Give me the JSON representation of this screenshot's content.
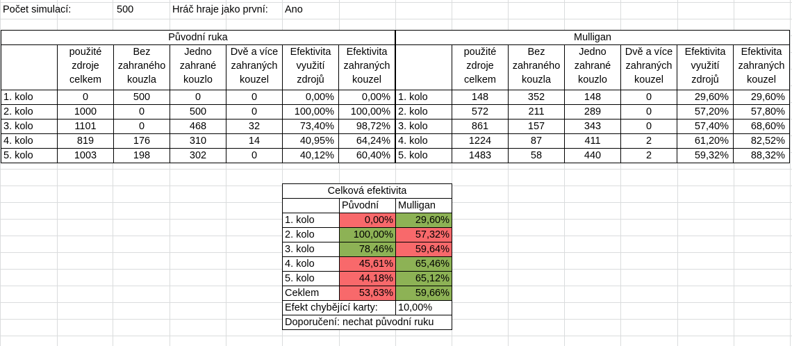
{
  "top": {
    "sim_label": "Počet simulací:",
    "sim_value": "500",
    "first_label": "Hráč hraje jako první:",
    "first_value": "Ano"
  },
  "original": {
    "title": "Původní ruka",
    "headers": [
      [
        "použité",
        "zdroje",
        "celkem"
      ],
      [
        "Bez",
        "zahraného",
        "kouzla"
      ],
      [
        "Jedno",
        "zahrané",
        "kouzlo"
      ],
      [
        "Dvě a více",
        "zahraných",
        "kouzel"
      ],
      [
        "Efektivita",
        "využití",
        "zdrojů"
      ],
      [
        "Efektivita",
        "zahraných",
        "kouzel"
      ]
    ],
    "rows": [
      [
        "1. kolo",
        "0",
        "500",
        "0",
        "0",
        "0,00%",
        "0,00%"
      ],
      [
        "2. kolo",
        "1000",
        "0",
        "500",
        "0",
        "100,00%",
        "100,00%"
      ],
      [
        "3. kolo",
        "1101",
        "0",
        "468",
        "32",
        "73,40%",
        "98,72%"
      ],
      [
        "4. kolo",
        "819",
        "176",
        "310",
        "14",
        "40,95%",
        "64,24%"
      ],
      [
        "5. kolo",
        "1003",
        "198",
        "302",
        "0",
        "40,12%",
        "60,40%"
      ]
    ]
  },
  "mulligan": {
    "title": "Mulligan",
    "headers": [
      [
        "použité",
        "zdroje",
        "celkem"
      ],
      [
        "Bez",
        "zahraného",
        "kouzla"
      ],
      [
        "Jedno",
        "zahrané",
        "kouzlo"
      ],
      [
        "Dvě a více",
        "zahraných",
        "kouzel"
      ],
      [
        "Efektivita",
        "využití",
        "zdrojů"
      ],
      [
        "Efektivita",
        "zahraných",
        "kouzel"
      ]
    ],
    "rows": [
      [
        "1. kolo",
        "148",
        "352",
        "148",
        "0",
        "29,60%",
        "29,60%"
      ],
      [
        "2. kolo",
        "572",
        "211",
        "289",
        "0",
        "57,20%",
        "57,80%"
      ],
      [
        "3. kolo",
        "861",
        "157",
        "343",
        "0",
        "57,40%",
        "68,60%"
      ],
      [
        "4. kolo",
        "1224",
        "87",
        "411",
        "2",
        "61,20%",
        "82,52%"
      ],
      [
        "5. kolo",
        "1483",
        "58",
        "440",
        "2",
        "59,32%",
        "88,32%"
      ]
    ]
  },
  "summary": {
    "title": "Celková efektivita",
    "col_original": "Původní",
    "col_mulligan": "Mulligan",
    "rows": [
      {
        "label": "1. kolo",
        "original": "0,00%",
        "mulligan": "29,60%",
        "orig_color": "#f8696b",
        "mull_color": "#8db255"
      },
      {
        "label": "2. kolo",
        "original": "100,00%",
        "mulligan": "57,32%",
        "orig_color": "#8db255",
        "mull_color": "#f8696b"
      },
      {
        "label": "3. kolo",
        "original": "78,46%",
        "mulligan": "59,64%",
        "orig_color": "#8db255",
        "mull_color": "#f8696b"
      },
      {
        "label": "4. kolo",
        "original": "45,61%",
        "mulligan": "65,46%",
        "orig_color": "#f8696b",
        "mull_color": "#8db255"
      },
      {
        "label": "5. kolo",
        "original": "44,18%",
        "mulligan": "65,12%",
        "orig_color": "#f8696b",
        "mull_color": "#8db255"
      },
      {
        "label": "Ceklem",
        "original": "53,63%",
        "mulligan": "59,66%",
        "orig_color": "#f8696b",
        "mull_color": "#8db255"
      }
    ],
    "missing_card_label": "Efekt chybějící karty:",
    "missing_card_value": "10,00%",
    "recommendation": "Doporučení: nechat původní ruku"
  }
}
